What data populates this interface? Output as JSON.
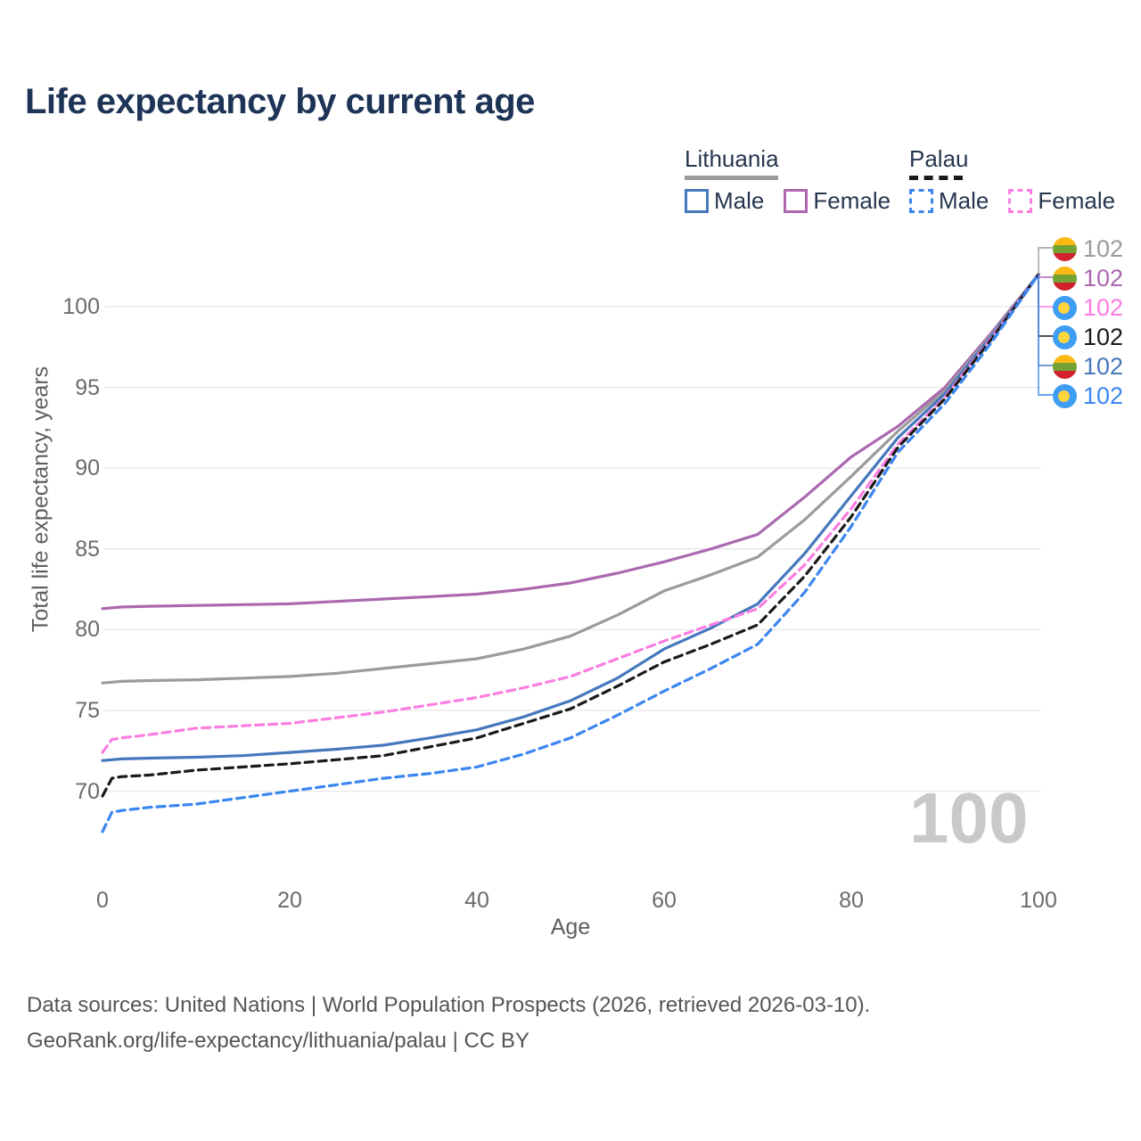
{
  "title": "Life expectancy by current age",
  "axes": {
    "x_label": "Age",
    "y_label": "Total life expectancy, years"
  },
  "watermark": "100",
  "legend": {
    "groups": [
      {
        "name": "Lithuania",
        "line_style": "solid",
        "underline_color": "#9b9b9b",
        "items": [
          {
            "label": "Male",
            "color": "#4678bd"
          },
          {
            "label": "Female",
            "color": "#ab68b0"
          }
        ]
      },
      {
        "name": "Palau",
        "line_style": "dashed",
        "underline_color": "#1a1a1a",
        "items": [
          {
            "label": "Male",
            "color": "#3b86f0"
          },
          {
            "label": "Female",
            "color": "#fb7de1"
          }
        ]
      }
    ]
  },
  "end_labels": [
    {
      "value": "102",
      "flag": "lithuania",
      "color": "#9b9b9b",
      "series": "Lithuania Both sexes"
    },
    {
      "value": "102",
      "flag": "lithuania",
      "color": "#ab68b0",
      "series": "Lithuania Female"
    },
    {
      "value": "102",
      "flag": "palau",
      "color": "#fb7de1",
      "series": "Palau Female"
    },
    {
      "value": "102",
      "flag": "palau",
      "color": "#1a1a1a",
      "series": "Palau Both sexes"
    },
    {
      "value": "102",
      "flag": "lithuania",
      "color": "#4678bd",
      "series": "Lithuania Male"
    },
    {
      "value": "102",
      "flag": "palau",
      "color": "#3b86f0",
      "series": "Palau Male"
    }
  ],
  "chart_data": {
    "type": "line",
    "title": "Life expectancy by current age",
    "xlabel": "Age",
    "ylabel": "Total life expectancy, years",
    "x_ticks": [
      0,
      20,
      40,
      60,
      80,
      100
    ],
    "y_ticks": [
      70,
      75,
      80,
      85,
      90,
      95,
      100
    ],
    "xlim": [
      0,
      100
    ],
    "ylim": [
      66.5,
      103.5
    ],
    "grid": "horizontal",
    "legend_position": "top-right",
    "end_value": 102,
    "ages": [
      0,
      1,
      2,
      5,
      10,
      15,
      20,
      25,
      30,
      35,
      40,
      45,
      50,
      55,
      60,
      65,
      70,
      75,
      80,
      85,
      90,
      95,
      100
    ],
    "series": [
      {
        "name": "Lithuania Female",
        "country": "lithuania",
        "sex": "female",
        "color": "#ab68b0",
        "dash": false,
        "values": [
          81.3,
          81.35,
          81.4,
          81.45,
          81.5,
          81.55,
          81.6,
          81.75,
          81.9,
          82.05,
          82.2,
          82.5,
          82.9,
          83.5,
          84.2,
          85.0,
          85.9,
          88.2,
          90.7,
          92.6,
          95.0,
          98.4,
          102
        ]
      },
      {
        "name": "Lithuania Both sexes",
        "country": "lithuania",
        "sex": "both",
        "color": "#9b9b9b",
        "dash": false,
        "values": [
          76.7,
          76.75,
          76.8,
          76.85,
          76.9,
          77.0,
          77.1,
          77.3,
          77.6,
          77.9,
          78.2,
          78.8,
          79.6,
          80.9,
          82.4,
          83.4,
          84.5,
          86.8,
          89.5,
          92.3,
          94.8,
          98.3,
          102
        ]
      },
      {
        "name": "Lithuania Male",
        "country": "lithuania",
        "sex": "male",
        "color": "#4678bd",
        "dash": false,
        "values": [
          71.9,
          71.95,
          72.0,
          72.05,
          72.1,
          72.2,
          72.4,
          72.6,
          72.85,
          73.3,
          73.8,
          74.6,
          75.6,
          77.0,
          78.8,
          80.1,
          81.6,
          84.7,
          88.3,
          91.9,
          94.6,
          98.2,
          102
        ]
      },
      {
        "name": "Palau Female",
        "country": "palau",
        "sex": "female",
        "color": "#fb7de1",
        "dash": true,
        "values": [
          72.4,
          73.2,
          73.3,
          73.5,
          73.9,
          74.05,
          74.2,
          74.55,
          74.9,
          75.35,
          75.8,
          76.4,
          77.1,
          78.2,
          79.3,
          80.3,
          81.3,
          84.0,
          87.5,
          91.5,
          94.4,
          98.1,
          102
        ]
      },
      {
        "name": "Palau Both sexes",
        "country": "palau",
        "sex": "both",
        "color": "#1a1a1a",
        "dash": true,
        "values": [
          69.7,
          70.8,
          70.9,
          71.0,
          71.3,
          71.5,
          71.7,
          71.95,
          72.2,
          72.75,
          73.3,
          74.2,
          75.1,
          76.5,
          78.0,
          79.1,
          80.3,
          83.3,
          87.0,
          91.3,
          94.3,
          98.0,
          102
        ]
      },
      {
        "name": "Palau Male",
        "country": "palau",
        "sex": "male",
        "color": "#3b86f0",
        "dash": true,
        "values": [
          67.5,
          68.7,
          68.8,
          69.0,
          69.2,
          69.6,
          70.0,
          70.4,
          70.8,
          71.1,
          71.5,
          72.3,
          73.3,
          74.7,
          76.2,
          77.6,
          79.1,
          82.3,
          86.4,
          91.0,
          94.0,
          97.8,
          102
        ]
      }
    ]
  },
  "footer": {
    "line1": "Data sources: United Nations | World Population Prospects (2026, retrieved 2026-03-10).",
    "line2": "GeoRank.org/life-expectancy/lithuania/palau | CC BY"
  }
}
